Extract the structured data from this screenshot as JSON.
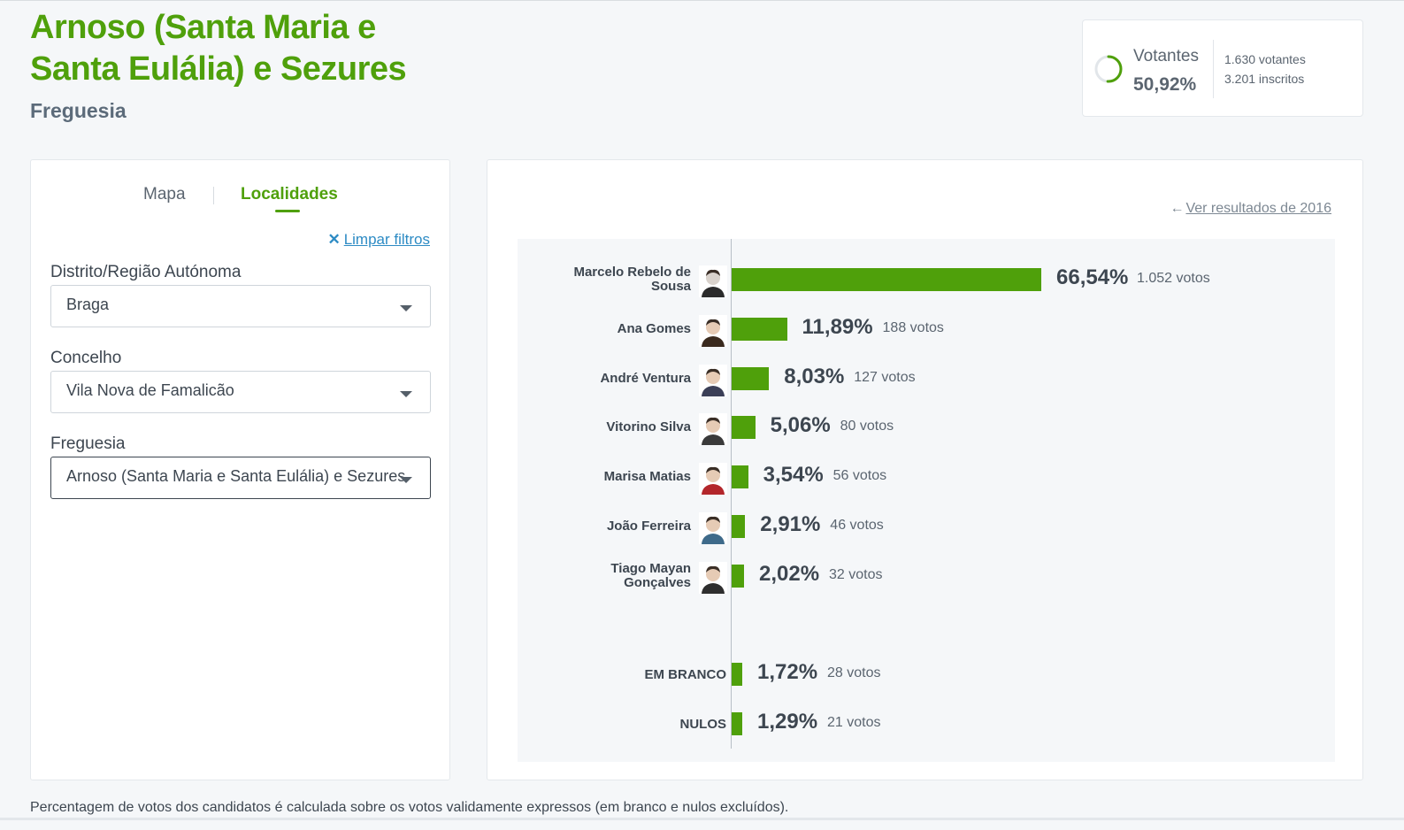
{
  "header": {
    "title": "Arnoso (Santa Maria e Santa Eulália) e Sezures",
    "subtitle": "Freguesia"
  },
  "turnout": {
    "label": "Votantes",
    "percent": "50,92%",
    "voters": "1.630 votantes",
    "registered": "3.201 inscritos",
    "ring_fraction": 0.5092,
    "ring_color": "#4fa00b"
  },
  "filters": {
    "tabs": [
      {
        "label": "Mapa",
        "active": false
      },
      {
        "label": "Localidades",
        "active": true
      }
    ],
    "clear_label": "Limpar filtros",
    "district_label": "Distrito/Região Autónoma",
    "district_value": "Braga",
    "council_label": "Concelho",
    "council_value": "Vila Nova de Famalicão",
    "parish_label": "Freguesia",
    "parish_value": "Arnoso (Santa Maria e Santa Eulália) e Sezures"
  },
  "results": {
    "back_link": "Ver resultados de 2016",
    "bar_color": "#4fa00b",
    "candidates": [
      {
        "name": "Marcelo Rebelo de Sousa",
        "percent": "66,54%",
        "votes": "1.052 votos",
        "value": 66.54
      },
      {
        "name": "Ana Gomes",
        "percent": "11,89%",
        "votes": "188 votos",
        "value": 11.89
      },
      {
        "name": "André Ventura",
        "percent": "8,03%",
        "votes": "127 votos",
        "value": 8.03
      },
      {
        "name": "Vitorino Silva",
        "percent": "5,06%",
        "votes": "80 votos",
        "value": 5.06
      },
      {
        "name": "Marisa Matias",
        "percent": "3,54%",
        "votes": "56 votos",
        "value": 3.54
      },
      {
        "name": "João Ferreira",
        "percent": "2,91%",
        "votes": "46 votos",
        "value": 2.91
      },
      {
        "name": "Tiago Mayan Gonçalves",
        "percent": "2,02%",
        "votes": "32 votos",
        "value": 2.02
      }
    ],
    "others": [
      {
        "name": "EM BRANCO",
        "percent": "1,72%",
        "votes": "28 votos",
        "value": 1.72
      },
      {
        "name": "NULOS",
        "percent": "1,29%",
        "votes": "21 votos",
        "value": 1.29
      }
    ]
  },
  "footnote": "Percentagem de votos dos candidatos é calculada sobre os votos validamente expressos (em branco e nulos excluídos)."
}
